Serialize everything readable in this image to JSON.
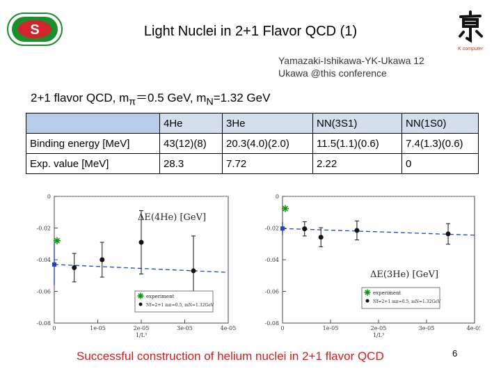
{
  "title": "Light Nuclei in 2+1 Flavor QCD (1)",
  "authors": [
    "Yamazaki-Ishikawa-YK-Ukawa 12",
    "Ukawa @this conference"
  ],
  "setup": {
    "prefix": "2+1 flavor QCD, m",
    "pi_sub": "π",
    "pi_val": "＝0.5 GeV, m",
    "n_sub": "N",
    "n_val": "=1.32 GeV"
  },
  "table": {
    "headers": [
      "",
      "4He",
      "3He",
      "NN(3S1)",
      "NN(1S0)"
    ],
    "rows": [
      [
        "Binding energy [MeV]",
        "43(12)(8)",
        "20.3(4.0)(2.0)",
        "11.5(1.1)(0.6)",
        "7.4(1.3)(0.6)"
      ],
      [
        "Exp. value [MeV]",
        "28.3",
        "7.72",
        "2.22",
        "0"
      ]
    ]
  },
  "logo_right_text": "K computer",
  "footer": "Successful construction of helium nuclei in 2+1 flavor QCD",
  "page_number": "6",
  "colors": {
    "accent": "#d41a1a",
    "line": "#1f3fcf",
    "star": "#0a9a0a"
  },
  "chart_data": [
    {
      "type": "scatter",
      "title": "ΔE(4He) [GeV]",
      "ylabel": "ΔE(4He) [GeV]",
      "xlabel": "1/L³",
      "xlim": [
        0,
        4e-05
      ],
      "ylim": [
        -0.08,
        0
      ],
      "x_ticks": [
        "0",
        "1e-05",
        "2e-05",
        "3e-05",
        "4e-05"
      ],
      "y_ticks": [
        "0",
        "-0.02",
        "-0.04",
        "-0.06",
        "-0.08"
      ],
      "legend": [
        "experiment",
        "Nf=2+1 mπ=0.5, mN=1.32GeV"
      ],
      "series": [
        {
          "name": "Nf=2+1 mπ=0.5, mN=1.32GeV",
          "x": [
            4.6e-06,
            1.1e-05,
            2e-05,
            3.2e-05
          ],
          "y": [
            -0.045,
            -0.04,
            -0.029,
            -0.047
          ],
          "err": [
            0.009,
            0.011,
            0.02,
            0.022
          ]
        },
        {
          "name": "extrapolation",
          "x": [
            0
          ],
          "y": [
            -0.043
          ],
          "err": [
            0.013
          ]
        },
        {
          "name": "experiment",
          "x": [
            0
          ],
          "y": [
            -0.028
          ]
        }
      ],
      "fit_line": {
        "x": [
          0,
          4e-05
        ],
        "y": [
          -0.043,
          -0.048
        ]
      }
    },
    {
      "type": "scatter",
      "title": "ΔE(3He) [GeV]",
      "ylabel": "ΔE(3He) [GeV]",
      "xlabel": "1/L³",
      "xlim": [
        0,
        4e-05
      ],
      "ylim": [
        -0.08,
        0
      ],
      "x_ticks": [
        "0",
        "1e-05",
        "2e-05",
        "3e-05",
        "4e-05"
      ],
      "y_ticks": [
        "0",
        "-0.02",
        "-0.04",
        "-0.06",
        "-0.08"
      ],
      "legend": [
        "experiment",
        "Nf=2+1 mπ=0.5, mN=1.32GeV"
      ],
      "series": [
        {
          "name": "Nf=2+1 mπ=0.5, mN=1.32GeV",
          "x": [
            4.6e-06,
            8e-06,
            1.55e-05,
            3.45e-05
          ],
          "y": [
            -0.0205,
            -0.0258,
            -0.0215,
            -0.0237
          ],
          "err": [
            0.0045,
            0.006,
            0.006,
            0.0065
          ]
        },
        {
          "name": "extrapolation",
          "x": [
            0
          ],
          "y": [
            -0.0203
          ],
          "err": [
            0.004
          ]
        },
        {
          "name": "experiment",
          "x": [
            0
          ],
          "y": [
            -0.0077
          ]
        }
      ],
      "fit_line": {
        "x": [
          0,
          4e-05
        ],
        "y": [
          -0.0203,
          -0.0245
        ]
      }
    }
  ]
}
